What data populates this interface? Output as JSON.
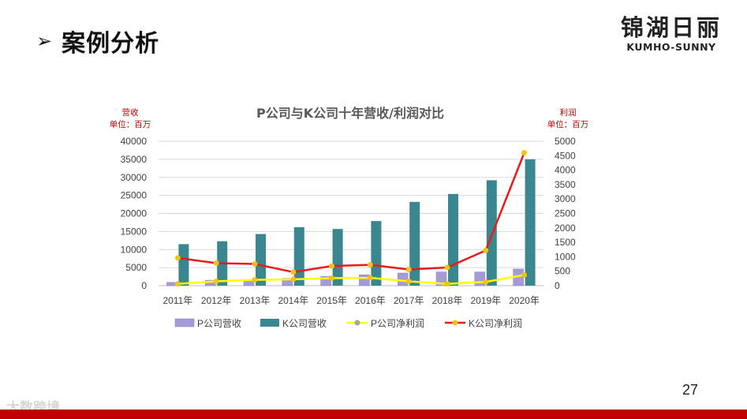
{
  "slide": {
    "title": "案例分析",
    "arrow_glyph": "➢",
    "logo_cn": "锦湖日丽",
    "logo_en": "KUMHO-SUNNY",
    "page_number": "27",
    "watermark": "大数跨境"
  },
  "colors": {
    "p_revenue": "#A59BD6",
    "k_revenue": "#3A878F",
    "p_profit": "#FFFF00",
    "k_profit": "#E81A1A",
    "marker": "#F0C419",
    "axis_label": "#C00000",
    "footer": "#C00000"
  },
  "chart_data": {
    "type": "bar",
    "title": "P公司与K公司十年营收/利润对比",
    "left_axis_label": "营收",
    "left_axis_unit": "单位：百万",
    "right_axis_label": "利润",
    "right_axis_unit": "单位：百万",
    "categories": [
      "2011年",
      "2012年",
      "2013年",
      "2014年",
      "2015年",
      "2016年",
      "2017年",
      "2018年",
      "2019年",
      "2020年"
    ],
    "left_ylim": [
      0,
      40000
    ],
    "left_ticks": [
      "40000",
      "35000",
      "30000",
      "25000",
      "20000",
      "15000",
      "10000",
      "5000",
      "0"
    ],
    "right_ylim": [
      0,
      5000
    ],
    "right_ticks": [
      "5000",
      "4500",
      "4000",
      "3500",
      "3000",
      "2500",
      "2000",
      "1500",
      "1000",
      "500",
      "0"
    ],
    "bar_series": [
      {
        "name": "P公司营收",
        "values": [
          900,
          1500,
          1600,
          2000,
          2600,
          3000,
          3500,
          3800,
          3800,
          4600
        ]
      },
      {
        "name": "K公司营收",
        "values": [
          11500,
          12300,
          14300,
          16200,
          15700,
          17900,
          23200,
          25400,
          29200,
          35000
        ]
      }
    ],
    "line_series": [
      {
        "name": "P公司净利润",
        "values": [
          60,
          150,
          200,
          220,
          260,
          270,
          150,
          60,
          130,
          370
        ]
      },
      {
        "name": "K公司净利润",
        "values": [
          960,
          780,
          750,
          470,
          680,
          720,
          560,
          630,
          1220,
          4600
        ]
      }
    ],
    "grid": true,
    "legend_position": "bottom"
  }
}
